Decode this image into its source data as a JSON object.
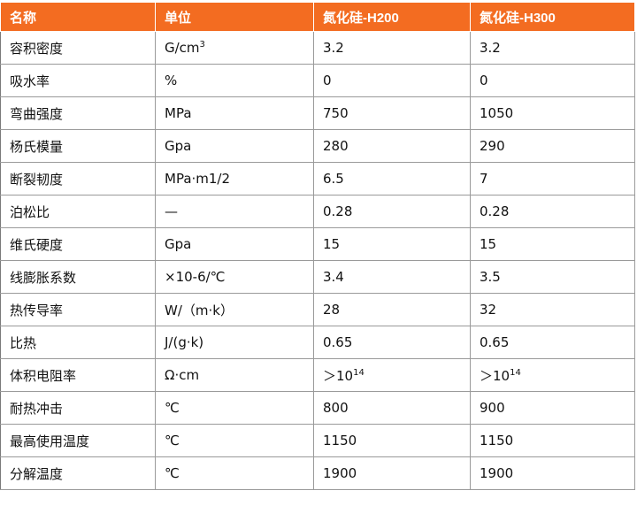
{
  "header_color": "#f36c21",
  "table": {
    "headers": [
      "名称",
      "单位",
      "氮化硅-H200",
      "氮化硅-H300"
    ],
    "rows": [
      [
        "容积密度",
        "G/cm",
        "3.2",
        "3.2"
      ],
      [
        "吸水率",
        "%",
        "0",
        "0"
      ],
      [
        "弯曲强度",
        "MPa",
        "750",
        "1050"
      ],
      [
        "杨氏模量",
        "Gpa",
        "280",
        "290"
      ],
      [
        "断裂韧度",
        "MPa·m1/2",
        "6.5",
        "7"
      ],
      [
        "泊松比",
        "—",
        "0.28",
        "0.28"
      ],
      [
        "维氏硬度",
        "Gpa",
        "15",
        "15"
      ],
      [
        "线膨胀系数",
        "×10-6/℃",
        "3.4",
        "3.5"
      ],
      [
        "热传导率",
        "W/（m·k）",
        "28",
        "32"
      ],
      [
        "比热",
        "J/(g·k)",
        "0.65",
        "0.65"
      ],
      [
        "体积电阻率",
        "Ω·cm",
        "＞10",
        "＞10"
      ],
      [
        "耐热冲击",
        "℃",
        "800",
        "900"
      ],
      [
        "最高使用温度",
        "℃",
        "1150",
        "1150"
      ],
      [
        "分解温度",
        "℃",
        "1900",
        "1900"
      ]
    ],
    "superscripts": {
      "density_unit": "3",
      "resistivity_exp": "14"
    }
  }
}
